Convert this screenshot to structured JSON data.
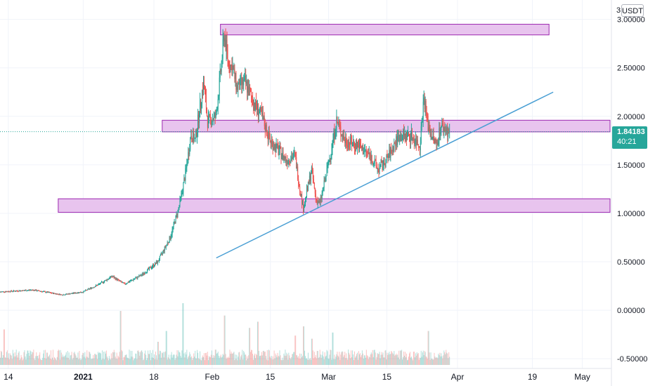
{
  "chart_data": {
    "type": "candlestick",
    "quote_currency": "USDT",
    "y_axis": {
      "ylim": [
        -0.6,
        3.2
      ],
      "ticks": [
        "3.00000",
        "2.50000",
        "2.00000",
        "1.50000",
        "1.00000",
        "0.50000",
        "0.00000",
        "-0.50000"
      ],
      "tick_values": [
        3.0,
        2.5,
        2.0,
        1.5,
        1.0,
        0.5,
        0.0,
        -0.5
      ],
      "cut_off_top_label": "3"
    },
    "x_axis": {
      "date_range": [
        "2020-12-12",
        "2021-05-08"
      ],
      "ticks": [
        {
          "label": "14",
          "date": "2020-12-14",
          "bold": false
        },
        {
          "label": "2021",
          "date": "2021-01-01",
          "bold": true
        },
        {
          "label": "18",
          "date": "2021-01-18",
          "bold": false
        },
        {
          "label": "Feb",
          "date": "2021-02-01",
          "bold": false
        },
        {
          "label": "15",
          "date": "2021-02-15",
          "bold": false
        },
        {
          "label": "Mar",
          "date": "2021-03-01",
          "bold": false
        },
        {
          "label": "15",
          "date": "2021-03-15",
          "bold": false
        },
        {
          "label": "Apr",
          "date": "2021-04-01",
          "bold": false
        },
        {
          "label": "19",
          "date": "2021-04-19",
          "bold": false
        },
        {
          "label": "May",
          "date": "2021-05-01",
          "bold": false
        }
      ]
    },
    "price_path": [
      [
        "2020-12-12",
        0.19
      ],
      [
        "2020-12-20",
        0.21
      ],
      [
        "2020-12-27",
        0.16
      ],
      [
        "2021-01-01",
        0.19
      ],
      [
        "2021-01-05",
        0.27
      ],
      [
        "2021-01-08",
        0.35
      ],
      [
        "2021-01-11",
        0.27
      ],
      [
        "2021-01-15",
        0.36
      ],
      [
        "2021-01-19",
        0.5
      ],
      [
        "2021-01-22",
        0.75
      ],
      [
        "2021-01-24",
        1.05
      ],
      [
        "2021-01-25",
        1.25
      ],
      [
        "2021-01-26",
        1.5
      ],
      [
        "2021-01-27",
        1.82
      ],
      [
        "2021-01-28",
        1.75
      ],
      [
        "2021-01-30",
        2.35
      ],
      [
        "2021-01-31",
        1.95
      ],
      [
        "2021-02-02",
        2.0
      ],
      [
        "2021-02-03",
        2.4
      ],
      [
        "2021-02-04",
        2.85
      ],
      [
        "2021-02-05",
        2.55
      ],
      [
        "2021-02-06",
        2.5
      ],
      [
        "2021-02-07",
        2.3
      ],
      [
        "2021-02-09",
        2.35
      ],
      [
        "2021-02-11",
        2.15
      ],
      [
        "2021-02-13",
        2.0
      ],
      [
        "2021-02-15",
        1.75
      ],
      [
        "2021-02-17",
        1.65
      ],
      [
        "2021-02-19",
        1.55
      ],
      [
        "2021-02-21",
        1.6
      ],
      [
        "2021-02-22",
        1.3
      ],
      [
        "2021-02-23",
        1.05
      ],
      [
        "2021-02-25",
        1.45
      ],
      [
        "2021-02-26",
        1.15
      ],
      [
        "2021-02-27",
        1.1
      ],
      [
        "2021-03-01",
        1.5
      ],
      [
        "2021-03-03",
        1.95
      ],
      [
        "2021-03-05",
        1.75
      ],
      [
        "2021-03-08",
        1.7
      ],
      [
        "2021-03-11",
        1.6
      ],
      [
        "2021-03-13",
        1.45
      ],
      [
        "2021-03-15",
        1.55
      ],
      [
        "2021-03-18",
        1.8
      ],
      [
        "2021-03-21",
        1.8
      ],
      [
        "2021-03-23",
        1.7
      ],
      [
        "2021-03-24",
        2.2
      ],
      [
        "2021-03-25",
        1.9
      ],
      [
        "2021-03-27",
        1.7
      ],
      [
        "2021-03-28",
        1.9
      ],
      [
        "2021-03-30",
        1.84
      ]
    ],
    "volume_ymax": 0.5,
    "volume_spikes": [
      [
        "2020-12-13",
        0.23
      ],
      [
        "2021-01-10",
        0.35
      ],
      [
        "2021-01-19",
        0.15
      ],
      [
        "2021-01-21",
        0.22
      ],
      [
        "2021-01-25",
        0.4
      ],
      [
        "2021-02-04",
        0.32
      ],
      [
        "2021-02-10",
        0.24
      ],
      [
        "2021-02-12",
        0.28
      ],
      [
        "2021-02-21",
        0.19
      ],
      [
        "2021-02-23",
        0.25
      ],
      [
        "2021-02-25",
        0.17
      ],
      [
        "2021-03-02",
        0.21
      ],
      [
        "2021-03-25",
        0.22
      ]
    ],
    "last_price": "1.84183",
    "countdown": "40:21",
    "horizontal_levels": [
      {
        "y1": 2.95,
        "y2": 2.84,
        "x_start": "2021-02-03",
        "x_end": "2021-04-23"
      },
      {
        "y1": 1.96,
        "y2": 1.84,
        "x_start": "2021-01-20",
        "x_end": "2021-05-11"
      },
      {
        "y1": 1.15,
        "y2": 1.01,
        "x_start": "2020-12-26",
        "x_end": "2021-05-11"
      }
    ],
    "trendline": {
      "start": [
        "2021-02-02",
        0.54
      ],
      "end": [
        "2021-04-24",
        2.25
      ]
    },
    "colors": {
      "up": "#26a69a",
      "down": "#ef5350",
      "zone_fill": "#e8c4ee",
      "zone_border": "#9c27b0",
      "trendline": "#4a9fd4",
      "price_line": "#26a69a",
      "grid": "#f0f3fa"
    }
  }
}
